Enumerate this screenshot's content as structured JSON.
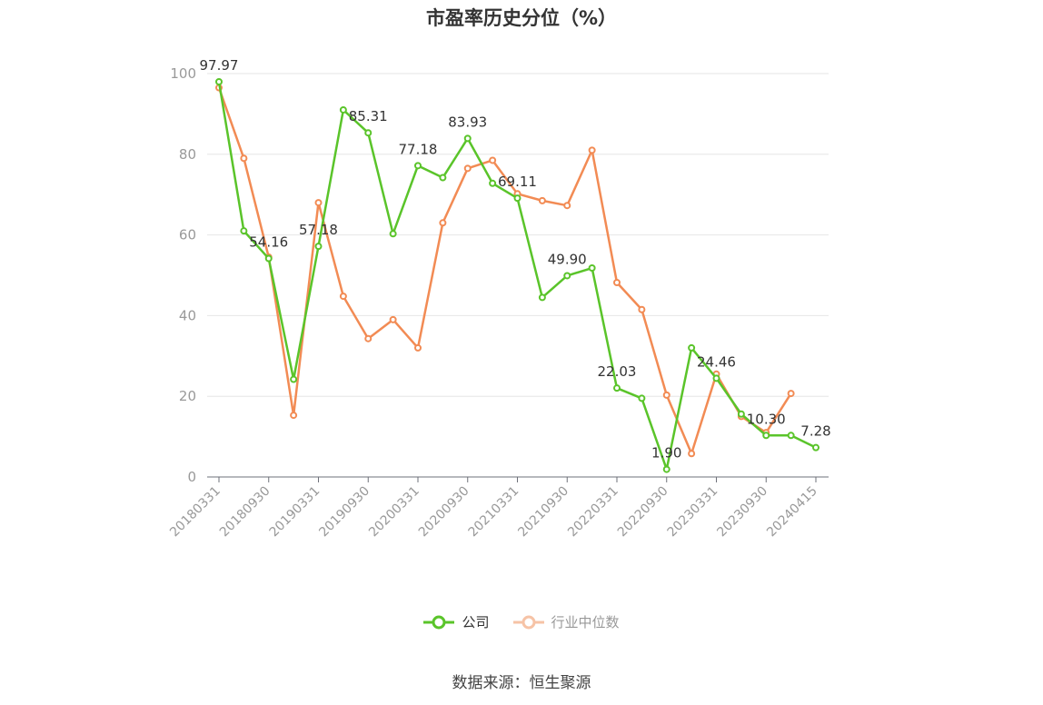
{
  "chart_data": {
    "type": "line",
    "title": "市盈率历史分位（%）",
    "ylim": [
      0,
      100
    ],
    "y_ticks": [
      0,
      20,
      40,
      60,
      80,
      100
    ],
    "grid": true,
    "x_tick_labels": [
      "20180331",
      "20180930",
      "20190331",
      "20190930",
      "20200331",
      "20200930",
      "20210331",
      "20210930",
      "20220331",
      "20220930",
      "20230331",
      "20230930",
      "20240415"
    ],
    "x": [
      "20180331",
      "20180630",
      "20180930",
      "20181231",
      "20190331",
      "20190630",
      "20190930",
      "20191231",
      "20200331",
      "20200630",
      "20200930",
      "20201231",
      "20210331",
      "20210630",
      "20210930",
      "20211231",
      "20220331",
      "20220630",
      "20220930",
      "20221231",
      "20230331",
      "20230630",
      "20230930",
      "20231231",
      "20240415"
    ],
    "series": [
      {
        "name": "公司",
        "color": "#5ac42a",
        "values": [
          97.97,
          61.0,
          54.16,
          24.2,
          57.18,
          91.0,
          85.31,
          60.3,
          77.18,
          74.2,
          83.93,
          72.8,
          69.11,
          44.5,
          49.9,
          51.8,
          22.03,
          19.5,
          1.9,
          32.0,
          24.46,
          15.6,
          10.3,
          10.3,
          7.28
        ],
        "data_labels": {
          "0": "97.97",
          "2": "54.16",
          "4": "57.18",
          "6": "85.31",
          "8": "77.18",
          "10": "83.93",
          "12": "69.11",
          "14": "49.90",
          "16": "22.03",
          "18": "1.90",
          "20": "24.46",
          "22": "10.30",
          "24": "7.28"
        }
      },
      {
        "name": "行业中位数",
        "color": "#f28b54",
        "values": [
          96.5,
          79.0,
          54.5,
          15.3,
          68.0,
          44.8,
          34.3,
          39.0,
          32.0,
          63.0,
          76.5,
          78.5,
          70.2,
          68.5,
          67.3,
          81.0,
          48.2,
          41.5,
          20.3,
          5.8,
          25.5,
          15.0,
          11.0,
          20.7,
          null
        ]
      }
    ],
    "legend_position": "bottom-center"
  },
  "source_text": "数据来源：恒生聚源"
}
